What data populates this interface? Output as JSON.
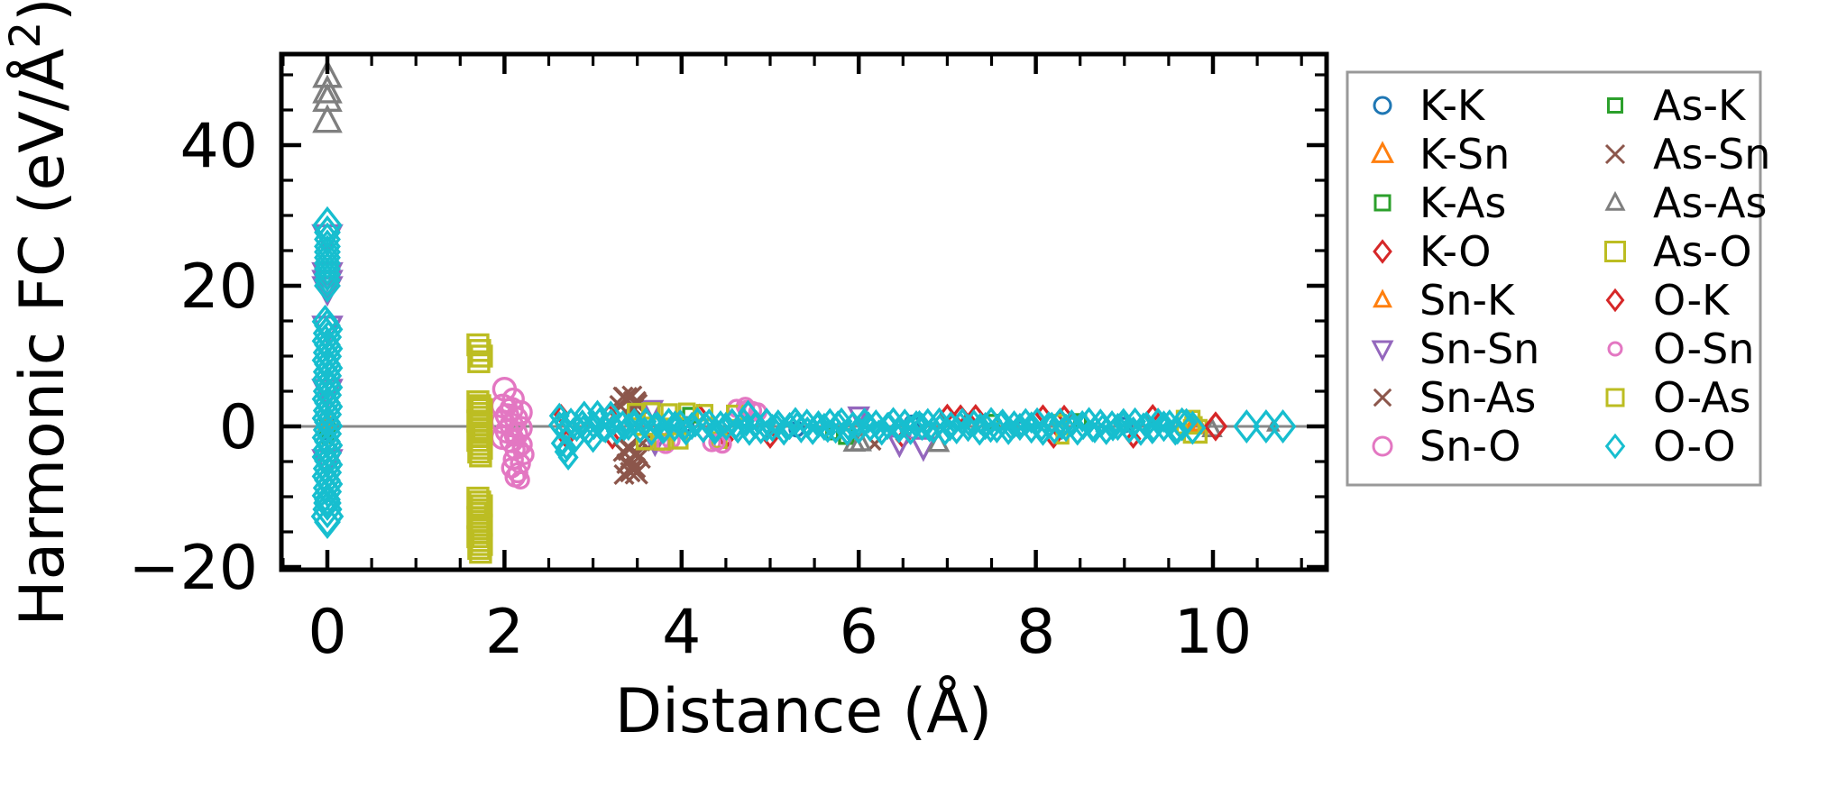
{
  "chart_data": {
    "type": "scatter",
    "title": "",
    "xlabel": "Distance (Å)",
    "ylabel_main": "Harmonic FC (eV/Å",
    "ylabel_sup": "2",
    "ylabel_close": ")",
    "xlim": [
      -0.52,
      11.28
    ],
    "ylim": [
      -20.4,
      52.9
    ],
    "grid": false,
    "zero_line": {
      "y": 0,
      "color": "#888888"
    },
    "frame_color": "#000000",
    "xticks": {
      "major": [
        {
          "value": 0,
          "label": "0"
        },
        {
          "value": 2,
          "label": "2"
        },
        {
          "value": 4,
          "label": "4"
        },
        {
          "value": 6,
          "label": "6"
        },
        {
          "value": 8,
          "label": "8"
        },
        {
          "value": 10,
          "label": "10"
        }
      ],
      "minor": [
        -0.5,
        0.5,
        1,
        1.5,
        2.5,
        3,
        3.5,
        4.5,
        5,
        5.5,
        6.5,
        7,
        7.5,
        8.5,
        9,
        9.5,
        10.5,
        11
      ]
    },
    "yticks": {
      "major": [
        {
          "value": -20,
          "label": "−20"
        },
        {
          "value": 0,
          "label": "0"
        },
        {
          "value": 20,
          "label": "20"
        },
        {
          "value": 40,
          "label": "40"
        }
      ],
      "minor": [
        -15,
        -10,
        -5,
        5,
        10,
        15,
        25,
        30,
        35,
        45,
        50
      ]
    },
    "series": [
      {
        "name": "K-K",
        "color": "#1f77b4",
        "marker": "circle",
        "size": 15,
        "legend_size": 18,
        "points": [
          [
            0,
            1.2
          ],
          [
            0,
            0.2
          ],
          [
            0,
            -0.8
          ],
          [
            4.05,
            0.3
          ],
          [
            5.3,
            -0.4
          ],
          [
            6.6,
            0.5
          ],
          [
            7.8,
            -0.3
          ],
          [
            9.0,
            0.2
          ]
        ]
      },
      {
        "name": "K-Sn",
        "color": "#ff7f0e",
        "marker": "triangle-up",
        "size": 17,
        "legend_size": 21,
        "points": [
          [
            9.78,
            0.35
          ],
          [
            9.84,
            0.05
          ],
          [
            0,
            0.6
          ]
        ]
      },
      {
        "name": "K-As",
        "color": "#2ca02c",
        "marker": "square",
        "size": 15,
        "legend_size": 16,
        "points": [
          [
            5.86,
            -1.45
          ],
          [
            4.1,
            1.6
          ],
          [
            7.5,
            0.6
          ],
          [
            0,
            -0.3
          ]
        ]
      },
      {
        "name": "K-O",
        "color": "#d62728",
        "marker": "diamond",
        "size": 16,
        "legend_size": 21,
        "points": [
          [
            2.64,
            1.75
          ],
          [
            2.7,
            -1.8
          ],
          [
            3.18,
            1.8
          ],
          [
            3.22,
            -1.85
          ],
          [
            4.2,
            1.8
          ],
          [
            4.5,
            -1.85
          ],
          [
            5.0,
            -1.75
          ],
          [
            6.5,
            -1.8
          ],
          [
            7.0,
            1.8
          ],
          [
            7.15,
            1.7
          ],
          [
            7.32,
            1.75
          ],
          [
            8.08,
            1.7
          ],
          [
            8.2,
            -1.75
          ],
          [
            8.32,
            1.65
          ],
          [
            9.1,
            -1.75
          ],
          [
            9.32,
            1.75
          ]
        ]
      },
      {
        "name": "Sn-K",
        "color": "#ff7f0e",
        "marker": "triangle-up",
        "size": 14,
        "legend_size": 17,
        "points": [
          [
            9.8,
            0.15
          ],
          [
            0,
            0.9
          ]
        ]
      },
      {
        "name": "Sn-Sn",
        "color": "#9467bd",
        "marker": "triangle-down",
        "size": 30,
        "legend_size": 20,
        "points": [
          [
            0,
            27.0
          ],
          [
            0,
            21.6
          ],
          [
            0,
            20.5
          ],
          [
            0,
            19.6
          ],
          [
            0,
            14.0
          ],
          [
            0,
            5.0
          ],
          [
            0,
            -5.0
          ],
          [
            3.67,
            2.5,
            20
          ],
          [
            3.7,
            -2.5,
            20
          ],
          [
            6.0,
            1.6,
            20
          ],
          [
            6.46,
            -2.5,
            22
          ],
          [
            6.73,
            -2.9,
            24
          ]
        ]
      },
      {
        "name": "Sn-As",
        "color": "#8c564b",
        "marker": "x",
        "size": 26,
        "legend_size": 23,
        "points": [
          [
            3.34,
            4.2
          ],
          [
            3.44,
            4.35
          ],
          [
            3.38,
            3.7
          ],
          [
            3.5,
            3.2
          ],
          [
            3.3,
            3.0
          ],
          [
            3.46,
            2.55
          ],
          [
            3.4,
            -2.9
          ],
          [
            3.34,
            -3.6
          ],
          [
            3.5,
            -3.9
          ],
          [
            3.42,
            -4.6
          ],
          [
            3.38,
            -5.3
          ],
          [
            3.48,
            -5.9
          ],
          [
            3.42,
            -6.5
          ],
          [
            3.35,
            -6.85
          ],
          [
            3.56,
            -2.4,
            20
          ],
          [
            6.18,
            -2.5,
            16
          ]
        ]
      },
      {
        "name": "Sn-O",
        "color": "#e377c2",
        "marker": "circle",
        "size": 24,
        "legend_size": 20,
        "gens": [
          {
            "type": "column",
            "x": 2.08,
            "jitter": 0.1,
            "y0": 2.9,
            "y1": -2.0,
            "step": 0.45
          }
        ],
        "points": [
          [
            2.0,
            5.3
          ],
          [
            2.1,
            3.9,
            22
          ],
          [
            2.2,
            -2.6,
            20
          ],
          [
            2.12,
            -3.3,
            20
          ],
          [
            2.22,
            -4.0,
            20
          ],
          [
            2.1,
            -4.7,
            20
          ],
          [
            2.18,
            -5.3,
            20
          ],
          [
            2.08,
            -5.9,
            20
          ],
          [
            2.15,
            -6.6,
            20
          ],
          [
            2.12,
            -7.2,
            20
          ],
          [
            2.18,
            -7.6,
            18
          ],
          [
            3.76,
            -2.2,
            18
          ],
          [
            3.82,
            -2.55,
            18
          ],
          [
            3.88,
            -1.95,
            18
          ],
          [
            4.34,
            -2.3,
            18
          ],
          [
            4.46,
            -2.5,
            18
          ],
          [
            4.62,
            2.55,
            18
          ],
          [
            4.72,
            2.85,
            18
          ],
          [
            4.8,
            2.25,
            18
          ],
          [
            4.86,
            2.05,
            18
          ]
        ]
      },
      {
        "name": "As-K",
        "color": "#2ca02c",
        "marker": "square",
        "size": 12,
        "legend_size": 15,
        "points": [
          [
            5.7,
            -1.0
          ],
          [
            8.5,
            0.9
          ],
          [
            0,
            -1.5
          ]
        ]
      },
      {
        "name": "As-Sn",
        "color": "#8c564b",
        "marker": "x",
        "size": 30,
        "legend_size": 25,
        "points": [
          [
            3.37,
            3.95
          ],
          [
            3.47,
            3.35
          ],
          [
            3.41,
            -3.25
          ],
          [
            3.52,
            -4.35
          ],
          [
            3.45,
            -5.95
          ],
          [
            3.49,
            -6.6
          ]
        ]
      },
      {
        "name": "As-As",
        "color": "#7f7f7f",
        "marker": "triangle-up",
        "size": 28,
        "legend_size": 18,
        "points": [
          [
            0,
            49.8
          ],
          [
            0,
            47.6
          ],
          [
            0,
            46.4
          ],
          [
            0,
            43.4
          ],
          [
            5.95,
            -2.35,
            20
          ],
          [
            6.02,
            -2.3,
            20
          ],
          [
            6.9,
            -2.4,
            20
          ],
          [
            9.99,
            -0.4,
            18
          ],
          [
            10.68,
            0,
            10
          ]
        ]
      },
      {
        "name": "As-O",
        "color": "#bcbd22",
        "marker": "square",
        "size": 22,
        "legend_size": 21,
        "gens": [
          {
            "type": "column",
            "x": 1.72,
            "jitter": 0.02,
            "y0": 11.6,
            "y1": 9.2,
            "step": 0.8
          },
          {
            "type": "column",
            "x": 1.72,
            "jitter": 0.02,
            "y0": 3.5,
            "y1": -4.2,
            "step": 0.55
          },
          {
            "type": "column",
            "x": 1.72,
            "jitter": 0.02,
            "y0": -10.2,
            "y1": -17.8,
            "step": 0.55
          }
        ],
        "points": [
          [
            9.72,
            0.6,
            24
          ],
          [
            9.8,
            -0.7,
            24
          ],
          [
            3.48,
            2.1,
            16
          ],
          [
            3.66,
            2.2,
            16
          ],
          [
            3.86,
            2.05,
            16
          ],
          [
            4.06,
            2.15,
            16
          ],
          [
            4.26,
            1.95,
            16
          ],
          [
            3.58,
            -2.15,
            16
          ],
          [
            3.78,
            -2.2,
            16
          ],
          [
            3.98,
            -2.05,
            16
          ],
          [
            4.42,
            -1.95,
            16
          ],
          [
            4.6,
            1.85,
            16
          ],
          [
            8.27,
            0.8,
            12
          ],
          [
            8.3,
            -1.6,
            12
          ]
        ]
      },
      {
        "name": "O-K",
        "color": "#d62728",
        "marker": "diamond",
        "size": 26,
        "legend_size": 20,
        "points": [
          [
            10.03,
            0.0
          ]
        ]
      },
      {
        "name": "O-Sn",
        "color": "#e377c2",
        "marker": "circle",
        "size": 16,
        "legend_size": 14,
        "points": [
          [
            2.05,
            2.8
          ],
          [
            2.12,
            -1.5
          ],
          [
            2.18,
            -3.2
          ],
          [
            4.4,
            -2.25
          ],
          [
            4.73,
            2.5
          ]
        ]
      },
      {
        "name": "O-As",
        "color": "#bcbd22",
        "marker": "square",
        "size": 17,
        "legend_size": 18,
        "points": [
          [
            1.72,
            3.0
          ],
          [
            1.74,
            -1.0
          ],
          [
            1.7,
            -12.0
          ],
          [
            1.73,
            -16.0
          ],
          [
            9.78,
            0.15
          ]
        ]
      },
      {
        "name": "O-O",
        "color": "#17becf",
        "marker": "diamond",
        "size": 30,
        "legend_size": 22,
        "gens": [
          {
            "type": "column",
            "x": 0,
            "jitter": 0.025,
            "y0": 14.9,
            "y1": -10.2,
            "step": 0.55,
            "size": 30
          },
          {
            "type": "band",
            "x0": 2.62,
            "x1": 9.55,
            "step": 0.065,
            "size": 24,
            "ys": [
              0.17,
              -0.55,
              0.67,
              -0.21,
              0.42,
              -0.74,
              0.06,
              0.76,
              -0.4,
              0.53,
              -0.67,
              0.29,
              -0.06,
              0.61,
              -0.46,
              0.71,
              -0.78
            ]
          },
          {
            "type": "band",
            "x0": 2.66,
            "x1": 9.5,
            "step": 0.115,
            "size": 18,
            "ys": [
              0.5,
              -0.35,
              0.1,
              0.72,
              -0.68,
              0.25,
              -0.55,
              0.6,
              -0.15,
              0.4,
              -0.75,
              0.68,
              -0.45,
              0.0,
              0.55,
              -0.62
            ]
          }
        ],
        "points": [
          [
            0,
            28.6,
            34
          ],
          [
            0,
            27.6
          ],
          [
            0,
            26.6
          ],
          [
            0,
            25.6
          ],
          [
            0,
            24.8
          ],
          [
            0,
            24.0
          ],
          [
            0,
            23.2
          ],
          [
            0,
            22.4
          ],
          [
            0,
            21.6
          ],
          [
            0,
            20.8
          ],
          [
            0,
            20.0
          ],
          [
            0,
            -10.9,
            32
          ],
          [
            0,
            -11.8,
            34
          ],
          [
            0,
            -12.8,
            38
          ],
          [
            0,
            -13.6,
            30
          ],
          [
            10.38,
            0.0
          ],
          [
            10.6,
            0.0
          ],
          [
            10.79,
            0.0
          ],
          [
            9.65,
            0.3
          ],
          [
            9.77,
            -0.2
          ],
          [
            2.64,
            -2.4,
            22
          ],
          [
            2.7,
            -3.0,
            22
          ],
          [
            2.68,
            -3.6,
            22
          ],
          [
            2.72,
            -4.4,
            22
          ],
          [
            2.62,
            1.5,
            22
          ],
          [
            2.9,
            1.8,
            22
          ],
          [
            3.05,
            1.9,
            22
          ],
          [
            2.8,
            -1.9,
            22
          ],
          [
            3.0,
            -1.9,
            22
          ],
          [
            3.2,
            1.8,
            22
          ],
          [
            4.75,
            1.9,
            22
          ],
          [
            9.6,
            -0.6,
            24
          ],
          [
            9.7,
            0.6,
            24
          ]
        ]
      }
    ],
    "legend": {
      "border_color": "#999999",
      "background": "#ffffff",
      "columns": [
        [
          "K-K",
          "K-Sn",
          "K-As",
          "K-O",
          "Sn-K",
          "Sn-Sn",
          "Sn-As",
          "Sn-O"
        ],
        [
          "As-K",
          "As-Sn",
          "As-As",
          "As-O",
          "O-K",
          "O-Sn",
          "O-As",
          "O-O"
        ]
      ]
    }
  }
}
